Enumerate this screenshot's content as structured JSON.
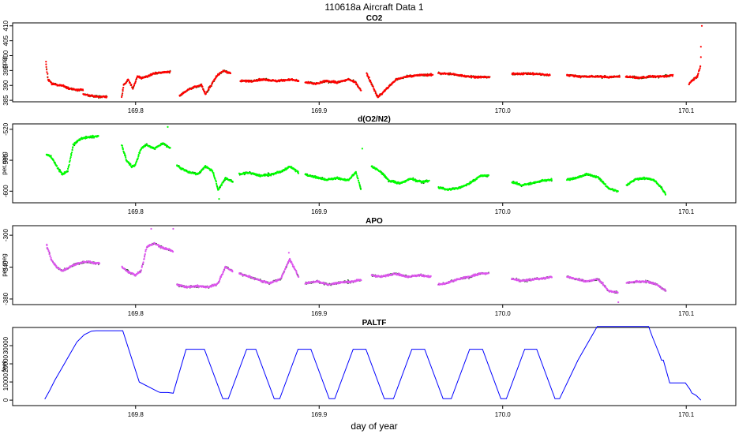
{
  "figure": {
    "title": "110618a    Aircraft Data 1",
    "xlabel": "day of year"
  },
  "colors": {
    "co2": "#ff0000",
    "o2n2": "#00ff00",
    "apo": "#dd55ee",
    "paltf": "#0000ff",
    "outline": "#006400"
  },
  "chart_data": [
    {
      "type": "scatter",
      "title": "CO2",
      "ylabel": "ppm",
      "xlim": [
        169.733,
        170.127
      ],
      "ylim": [
        384.5,
        411
      ],
      "yticks": [
        385,
        390,
        395,
        400,
        405,
        410
      ],
      "xticks": [
        169.8,
        169.9,
        170.0,
        170.1
      ],
      "xtick_labels": [
        "169.8",
        "169.9",
        "170.0",
        "170.1"
      ],
      "series": [
        {
          "color_key": "co2",
          "segments": [
            {
              "x": [
                169.7512,
                169.7523,
                169.7544,
                169.757,
                169.76,
                169.764,
                169.768,
                169.7715
              ],
              "y": [
                397,
                392,
                390.5,
                390.2,
                390,
                389,
                388.5,
                388.5
              ]
            },
            {
              "x": [
                169.7715,
                169.776,
                169.78,
                169.7845
              ],
              "y": [
                387,
                386.5,
                386.2,
                386.2
              ]
            },
            {
              "x": [
                169.7925,
                169.7935,
                169.796,
                169.7985,
                169.801,
                169.8035,
                169.806,
                169.81,
                169.815,
                169.819
              ],
              "y": [
                386,
                390,
                392,
                389,
                393,
                392.5,
                393,
                394,
                394.5,
                394.5
              ]
            },
            {
              "x": [
                169.824,
                169.827,
                169.832,
                169.836,
                169.838,
                169.84,
                169.844,
                169.848,
                169.852
              ],
              "y": [
                386.5,
                388,
                389.5,
                390,
                387,
                389,
                393,
                395,
                394
              ]
            },
            {
              "x": [
                169.857,
                169.863,
                169.87,
                169.877,
                169.884,
                169.889
              ],
              "y": [
                391.5,
                391.5,
                392,
                391.5,
                392,
                391.5
              ]
            },
            {
              "x": [
                169.8925,
                169.898,
                169.904,
                169.91,
                169.916,
                169.92,
                169.923
              ],
              "y": [
                391,
                390.5,
                391.5,
                391,
                392,
                391,
                388
              ]
            },
            {
              "x": [
                169.926,
                169.929,
                169.932,
                169.937,
                169.942,
                169.948,
                169.955,
                169.962
              ],
              "y": [
                394,
                390,
                386,
                389,
                392,
                393,
                393.5,
                393.5
              ]
            },
            {
              "x": [
                169.965,
                169.972,
                169.979,
                169.986,
                169.993
              ],
              "y": [
                394.2,
                393.8,
                393.2,
                392.8,
                392.8
              ]
            },
            {
              "x": [
                170.005,
                170.012,
                170.019,
                170.026
              ],
              "y": [
                393.8,
                394,
                393.8,
                393.5
              ]
            },
            {
              "x": [
                170.035,
                170.042,
                170.05,
                170.058,
                170.064
              ],
              "y": [
                393.5,
                393,
                393,
                392.8,
                393
              ]
            },
            {
              "x": [
                170.067,
                170.074,
                170.081,
                170.088,
                170.093
              ],
              "y": [
                393,
                392.5,
                393,
                393,
                393.5
              ]
            },
            {
              "x": [
                170.1015,
                170.104,
                170.106,
                170.108
              ],
              "y": [
                390.5,
                392,
                393,
                397
              ]
            }
          ],
          "spikes": [
            {
              "x": 170.1085,
              "y": 410
            },
            {
              "x": 170.108,
              "y": 403
            },
            {
              "x": 170.108,
              "y": 399.5
            },
            {
              "x": 169.7512,
              "y": 398
            }
          ]
        }
      ]
    },
    {
      "type": "scatter",
      "title": "d(O2/N2)",
      "ylabel": "per meg",
      "xlim": [
        169.733,
        170.127
      ],
      "ylim": [
        -615,
        -513
      ],
      "yticks": [
        -520,
        -560,
        -600
      ],
      "xticks": [
        169.8,
        169.9,
        170.0,
        170.1
      ],
      "xtick_labels": [
        "169.8",
        "169.9",
        "170.0",
        "170.1"
      ],
      "series": [
        {
          "color_key": "o2n2",
          "segments": [
            {
              "x": [
                169.7515,
                169.754,
                169.757,
                169.76,
                169.763,
                169.766,
                169.77,
                169.775,
                169.78
              ],
              "y": [
                -553,
                -555,
                -568,
                -578,
                -574,
                -540,
                -532,
                -530,
                -529
              ]
            },
            {
              "x": [
                169.7925,
                169.795,
                169.798,
                169.8,
                169.803,
                169.806,
                169.81,
                169.815,
                169.819
              ],
              "y": [
                -540,
                -560,
                -568,
                -565,
                -545,
                -540,
                -545,
                -538,
                -545
              ]
            },
            {
              "x": [
                169.8225,
                169.826,
                169.83,
                169.834,
                169.838,
                169.842,
                169.845,
                169.849,
                169.853
              ],
              "y": [
                -567,
                -572,
                -576,
                -578,
                -568,
                -574,
                -598,
                -583,
                -588
              ]
            },
            {
              "x": [
                169.8565,
                169.862,
                169.868,
                169.874,
                169.879,
                169.884,
                169.889
              ],
              "y": [
                -578,
                -576,
                -580,
                -578,
                -575,
                -568,
                -576
              ]
            },
            {
              "x": [
                169.8925,
                169.898,
                169.904,
                169.91,
                169.916,
                169.92,
                169.923
              ],
              "y": [
                -578,
                -582,
                -585,
                -583,
                -586,
                -575,
                -600
              ]
            },
            {
              "x": [
                169.9285,
                169.933,
                169.938,
                169.944,
                169.95,
                169.956,
                169.96
              ],
              "y": [
                -568,
                -574,
                -586,
                -590,
                -584,
                -588,
                -586
              ]
            },
            {
              "x": [
                169.965,
                169.97,
                169.976,
                169.982,
                169.988,
                169.9925
              ],
              "y": [
                -595,
                -598,
                -596,
                -590,
                -580,
                -580
              ]
            },
            {
              "x": [
                170.005,
                170.01,
                170.016,
                170.022,
                170.027
              ],
              "y": [
                -588,
                -592,
                -590,
                -586,
                -585
              ]
            },
            {
              "x": [
                170.035,
                170.04,
                170.046,
                170.052,
                170.058,
                170.063
              ],
              "y": [
                -585,
                -583,
                -578,
                -582,
                -597,
                -600
              ]
            },
            {
              "x": [
                170.0675,
                170.072,
                170.077,
                170.082,
                170.086,
                170.089
              ],
              "y": [
                -592,
                -585,
                -583,
                -585,
                -594,
                -605
              ]
            }
          ],
          "spikes": [
            {
              "x": 169.8175,
              "y": -517
            },
            {
              "x": 169.9235,
              "y": -545
            },
            {
              "x": 169.8455,
              "y": -610
            }
          ]
        }
      ]
    },
    {
      "type": "scatter",
      "title": "APO",
      "ylabel": "per meg",
      "xlim": [
        169.733,
        170.127
      ],
      "ylim": [
        -387,
        -288
      ],
      "yticks": [
        -300,
        -340,
        -380
      ],
      "xticks": [
        169.8,
        169.9,
        170.0,
        170.1
      ],
      "xtick_labels": [
        "169.8",
        "169.9",
        "170.0",
        "170.1"
      ],
      "series": [
        {
          "color_key": "apo",
          "segments": [
            {
              "x": [
                169.7515,
                169.754,
                169.757,
                169.76,
                169.764,
                169.768,
                169.773,
                169.778,
                169.7805
              ],
              "y": [
                -312,
                -330,
                -340,
                -345,
                -340,
                -336,
                -333,
                -335,
                -335
              ]
            },
            {
              "x": [
                169.7925,
                169.796,
                169.8,
                169.803,
                169.806,
                169.81,
                169.814,
                169.818,
                169.8205
              ],
              "y": [
                -340,
                -346,
                -350,
                -345,
                -315,
                -310,
                -315,
                -318,
                -320
              ]
            },
            {
              "x": [
                169.8225,
                169.828,
                169.834,
                169.84,
                169.845,
                169.849,
                169.853
              ],
              "y": [
                -362,
                -365,
                -364,
                -365,
                -360,
                -340,
                -345
              ]
            },
            {
              "x": [
                169.8565,
                169.862,
                169.868,
                169.873,
                169.879,
                169.884,
                169.889
              ],
              "y": [
                -348,
                -352,
                -357,
                -360,
                -355,
                -330,
                -353
              ]
            },
            {
              "x": [
                169.8925,
                169.899,
                169.905,
                169.912,
                169.918,
                169.923
              ],
              "y": [
                -360,
                -358,
                -362,
                -359,
                -358,
                -356
              ]
            },
            {
              "x": [
                169.9285,
                169.934,
                169.941,
                169.948,
                169.955,
                169.961
              ],
              "y": [
                -350,
                -352,
                -348,
                -352,
                -350,
                -352
              ]
            },
            {
              "x": [
                169.965,
                169.97,
                169.976,
                169.982,
                169.988,
                169.9925
              ],
              "y": [
                -362,
                -360,
                -355,
                -352,
                -348,
                -348
              ]
            },
            {
              "x": [
                170.005,
                170.011,
                170.017,
                170.023,
                170.027
              ],
              "y": [
                -355,
                -357,
                -355,
                -354,
                -352
              ]
            },
            {
              "x": [
                170.035,
                170.04,
                170.046,
                170.052,
                170.058,
                170.063
              ],
              "y": [
                -352,
                -355,
                -358,
                -355,
                -370,
                -372
              ]
            },
            {
              "x": [
                170.0675,
                170.073,
                170.079,
                170.084,
                170.089
              ],
              "y": [
                -360,
                -358,
                -358,
                -362,
                -370
              ]
            }
          ],
          "spikes": [
            {
              "x": 169.8085,
              "y": -292
            },
            {
              "x": 169.8205,
              "y": -292
            },
            {
              "x": 169.8835,
              "y": -322
            },
            {
              "x": 170.063,
              "y": -384
            }
          ]
        }
      ]
    },
    {
      "type": "line",
      "title": "PALTF",
      "ylabel": "feet",
      "xlim": [
        169.733,
        170.127
      ],
      "ylim": [
        -3000,
        40000
      ],
      "yticks": [
        0,
        10000,
        20000,
        30000
      ],
      "xticks": [
        169.8,
        169.9,
        170.0,
        170.1
      ],
      "xtick_labels": [
        "169.8",
        "169.9",
        "170.0",
        "170.1"
      ],
      "series": [
        {
          "color_key": "paltf",
          "x": [
            169.7505,
            169.753,
            169.756,
            169.76,
            169.764,
            169.768,
            169.772,
            169.776,
            169.7785,
            169.793,
            169.802,
            169.8125,
            169.8135,
            169.815,
            169.8175,
            169.8205,
            169.8275,
            169.8375,
            169.8475,
            169.8505,
            169.8605,
            169.8655,
            169.8755,
            169.8785,
            169.8885,
            169.8955,
            169.9055,
            169.9085,
            169.9185,
            169.9255,
            169.9355,
            169.9405,
            169.9505,
            169.9575,
            169.9675,
            169.972,
            169.982,
            169.989,
            169.999,
            170.002,
            170.012,
            170.0185,
            170.0285,
            170.031,
            170.041,
            170.0515,
            170.0555,
            170.0795,
            170.0815,
            170.0855,
            170.0865,
            170.0875,
            170.091,
            170.0995,
            170.102,
            170.103,
            170.1055,
            170.108
          ],
          "y": [
            500,
            5000,
            11000,
            18000,
            25000,
            32000,
            36000,
            38000,
            38200,
            38200,
            10000,
            4500,
            4200,
            4200,
            4200,
            3800,
            28000,
            28000,
            800,
            800,
            28000,
            28000,
            800,
            800,
            28000,
            28000,
            800,
            800,
            28000,
            28000,
            800,
            800,
            28000,
            28000,
            800,
            800,
            28000,
            28000,
            800,
            800,
            28000,
            28000,
            800,
            800,
            22000,
            40500,
            40500,
            40500,
            35000,
            25000,
            22000,
            22000,
            9500,
            9500,
            6000,
            4000,
            2500,
            0
          ]
        }
      ]
    }
  ]
}
